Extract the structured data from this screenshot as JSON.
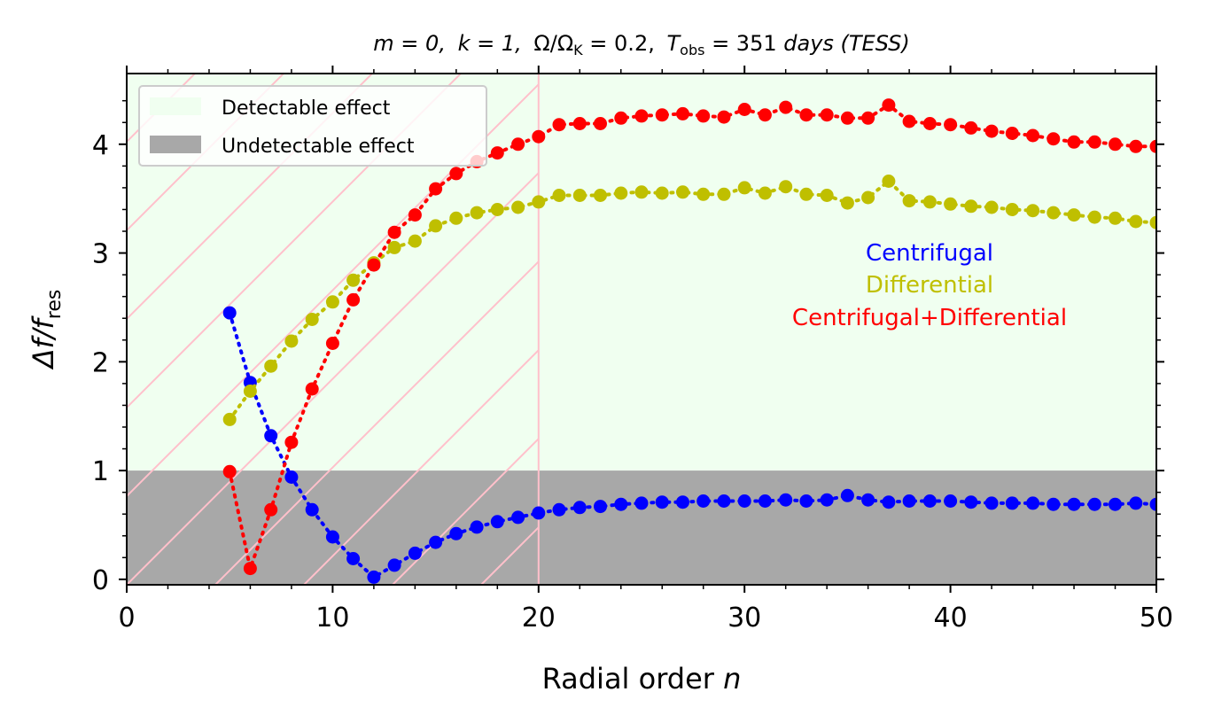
{
  "chart_data": {
    "type": "line",
    "title": "m = 0, k = 1, Ω/Ω_K = 0.2, T_obs = 351 days (TESS)",
    "title_parts": {
      "m": "m = 0,",
      "k": "k = 1,",
      "omega": "Ω/Ω",
      "omega_sub": "K",
      "omega_val": " = 0.2,",
      "t": "T",
      "t_sub": "obs",
      "t_val": " = 351 ",
      "days": "days",
      "tess": " (TESS)"
    },
    "xlabel": "Radial order",
    "xlabel_var": "n",
    "ylabel": "Δf/f",
    "ylabel_sub": "res",
    "xlim": [
      0,
      50
    ],
    "ylim": [
      -0.05,
      4.65
    ],
    "x_ticks": [
      0,
      10,
      20,
      30,
      40,
      50
    ],
    "y_ticks": [
      0,
      1,
      2,
      3,
      4
    ],
    "detection_threshold": 1,
    "hatch_region_x": [
      0,
      20
    ],
    "legend": {
      "position": "top-left",
      "entries": [
        {
          "label": "Detectable effect",
          "color": "#f0fff0"
        },
        {
          "label": "Undetectable effect",
          "color": "#a8a8a8"
        }
      ]
    },
    "annotations": [
      {
        "text": "Centrifugal",
        "color": "#0000ff"
      },
      {
        "text": "Differential",
        "color": "#bfbf00"
      },
      {
        "text": "Centrifugal+Differential",
        "color": "#ff0000"
      }
    ],
    "series": [
      {
        "name": "Centrifugal",
        "color": "#0000ff",
        "x": [
          5,
          6,
          7,
          8,
          9,
          10,
          11,
          12,
          13,
          14,
          15,
          16,
          17,
          18,
          19,
          20,
          21,
          22,
          23,
          24,
          25,
          26,
          27,
          28,
          29,
          30,
          31,
          32,
          33,
          34,
          35,
          36,
          37,
          38,
          39,
          40,
          41,
          42,
          43,
          44,
          45,
          46,
          47,
          48,
          49,
          50
        ],
        "values": [
          2.45,
          1.81,
          1.32,
          0.94,
          0.64,
          0.39,
          0.19,
          0.02,
          0.13,
          0.24,
          0.34,
          0.42,
          0.48,
          0.53,
          0.57,
          0.61,
          0.64,
          0.66,
          0.67,
          0.69,
          0.7,
          0.71,
          0.71,
          0.72,
          0.72,
          0.72,
          0.72,
          0.73,
          0.72,
          0.73,
          0.77,
          0.73,
          0.71,
          0.72,
          0.72,
          0.72,
          0.71,
          0.7,
          0.7,
          0.7,
          0.69,
          0.69,
          0.69,
          0.69,
          0.7,
          0.69
        ]
      },
      {
        "name": "Differential",
        "color": "#bfbf00",
        "x": [
          5,
          6,
          7,
          8,
          9,
          10,
          11,
          12,
          13,
          14,
          15,
          16,
          17,
          18,
          19,
          20,
          21,
          22,
          23,
          24,
          25,
          26,
          27,
          28,
          29,
          30,
          31,
          32,
          33,
          34,
          35,
          36,
          37,
          38,
          39,
          40,
          41,
          42,
          43,
          44,
          45,
          46,
          47,
          48,
          49,
          50
        ],
        "values": [
          1.47,
          1.73,
          1.96,
          2.19,
          2.39,
          2.55,
          2.75,
          2.91,
          3.05,
          3.11,
          3.25,
          3.32,
          3.37,
          3.4,
          3.42,
          3.47,
          3.53,
          3.53,
          3.53,
          3.55,
          3.56,
          3.55,
          3.56,
          3.54,
          3.54,
          3.6,
          3.55,
          3.61,
          3.54,
          3.53,
          3.46,
          3.51,
          3.66,
          3.48,
          3.47,
          3.45,
          3.43,
          3.42,
          3.4,
          3.39,
          3.37,
          3.35,
          3.33,
          3.32,
          3.29,
          3.28
        ]
      },
      {
        "name": "Centrifugal+Differential",
        "color": "#ff0000",
        "x": [
          5,
          6,
          7,
          8,
          9,
          10,
          11,
          12,
          13,
          14,
          15,
          16,
          17,
          18,
          19,
          20,
          21,
          22,
          23,
          24,
          25,
          26,
          27,
          28,
          29,
          30,
          31,
          32,
          33,
          34,
          35,
          36,
          37,
          38,
          39,
          40,
          41,
          42,
          43,
          44,
          45,
          46,
          47,
          48,
          49,
          50
        ],
        "values": [
          0.99,
          0.1,
          0.64,
          1.26,
          1.75,
          2.17,
          2.57,
          2.89,
          3.19,
          3.35,
          3.59,
          3.73,
          3.84,
          3.92,
          4.0,
          4.07,
          4.18,
          4.19,
          4.19,
          4.24,
          4.26,
          4.27,
          4.28,
          4.26,
          4.25,
          4.32,
          4.27,
          4.34,
          4.27,
          4.27,
          4.24,
          4.24,
          4.36,
          4.21,
          4.19,
          4.18,
          4.15,
          4.12,
          4.1,
          4.08,
          4.05,
          4.02,
          4.02,
          4.0,
          3.98,
          3.98
        ]
      }
    ]
  }
}
